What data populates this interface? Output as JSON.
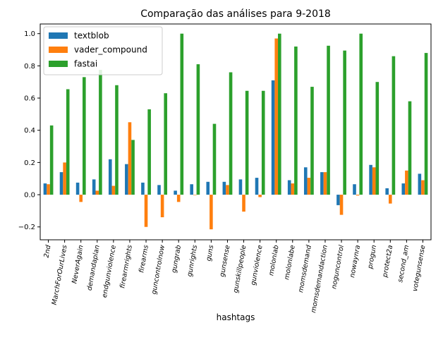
{
  "chart_data": {
    "type": "bar",
    "title": "Comparação das análises para 9-2018",
    "xlabel": "hashtags",
    "ylabel": "",
    "ylim": [
      -0.28,
      1.06
    ],
    "yticks": [
      -0.2,
      0.0,
      0.2,
      0.4,
      0.6,
      0.8,
      1.0
    ],
    "ytick_labels": [
      "−0.2",
      "0.0",
      "0.2",
      "0.4",
      "0.6",
      "0.8",
      "1.0"
    ],
    "legend_position": "top-left",
    "categories": [
      "2nd",
      "MarchForOurLives",
      "NeverAgain",
      "demandaplan",
      "endgunviolence",
      "firearmrights",
      "firearms",
      "guncontrolnow",
      "gungrab",
      "gunrights",
      "guns",
      "gunsense",
      "gunskillpeople",
      "gunviolence",
      "molonlab",
      "molonlabe",
      "momsdemand",
      "momsdemandaction",
      "noguncontrol",
      "nowaynra",
      "progun",
      "protect2a",
      "second_am",
      "votegunsense"
    ],
    "series": [
      {
        "name": "textblob",
        "color": "#1f77b4",
        "values": [
          0.07,
          0.14,
          0.075,
          0.095,
          0.22,
          0.19,
          0.075,
          0.06,
          0.025,
          0.065,
          0.08,
          0.08,
          0.095,
          0.105,
          0.71,
          0.09,
          0.17,
          0.14,
          -0.065,
          0.065,
          0.185,
          0.04,
          0.07,
          0.13
        ]
      },
      {
        "name": "vader_compound",
        "color": "#ff7f0e",
        "values": [
          0.065,
          0.2,
          -0.045,
          0.025,
          0.055,
          0.45,
          -0.2,
          -0.14,
          -0.045,
          0.0,
          -0.215,
          0.06,
          -0.105,
          -0.015,
          0.97,
          0.07,
          0.105,
          0.14,
          -0.125,
          -0.005,
          0.17,
          -0.055,
          0.15,
          0.09
        ]
      },
      {
        "name": "fastai",
        "color": "#2ca02c",
        "values": [
          0.43,
          0.655,
          0.73,
          0.775,
          0.68,
          0.34,
          0.53,
          0.63,
          1.0,
          0.81,
          0.44,
          0.76,
          0.645,
          0.645,
          1.0,
          0.92,
          0.67,
          0.925,
          0.895,
          1.0,
          0.7,
          0.86,
          0.58,
          0.88
        ]
      }
    ]
  }
}
